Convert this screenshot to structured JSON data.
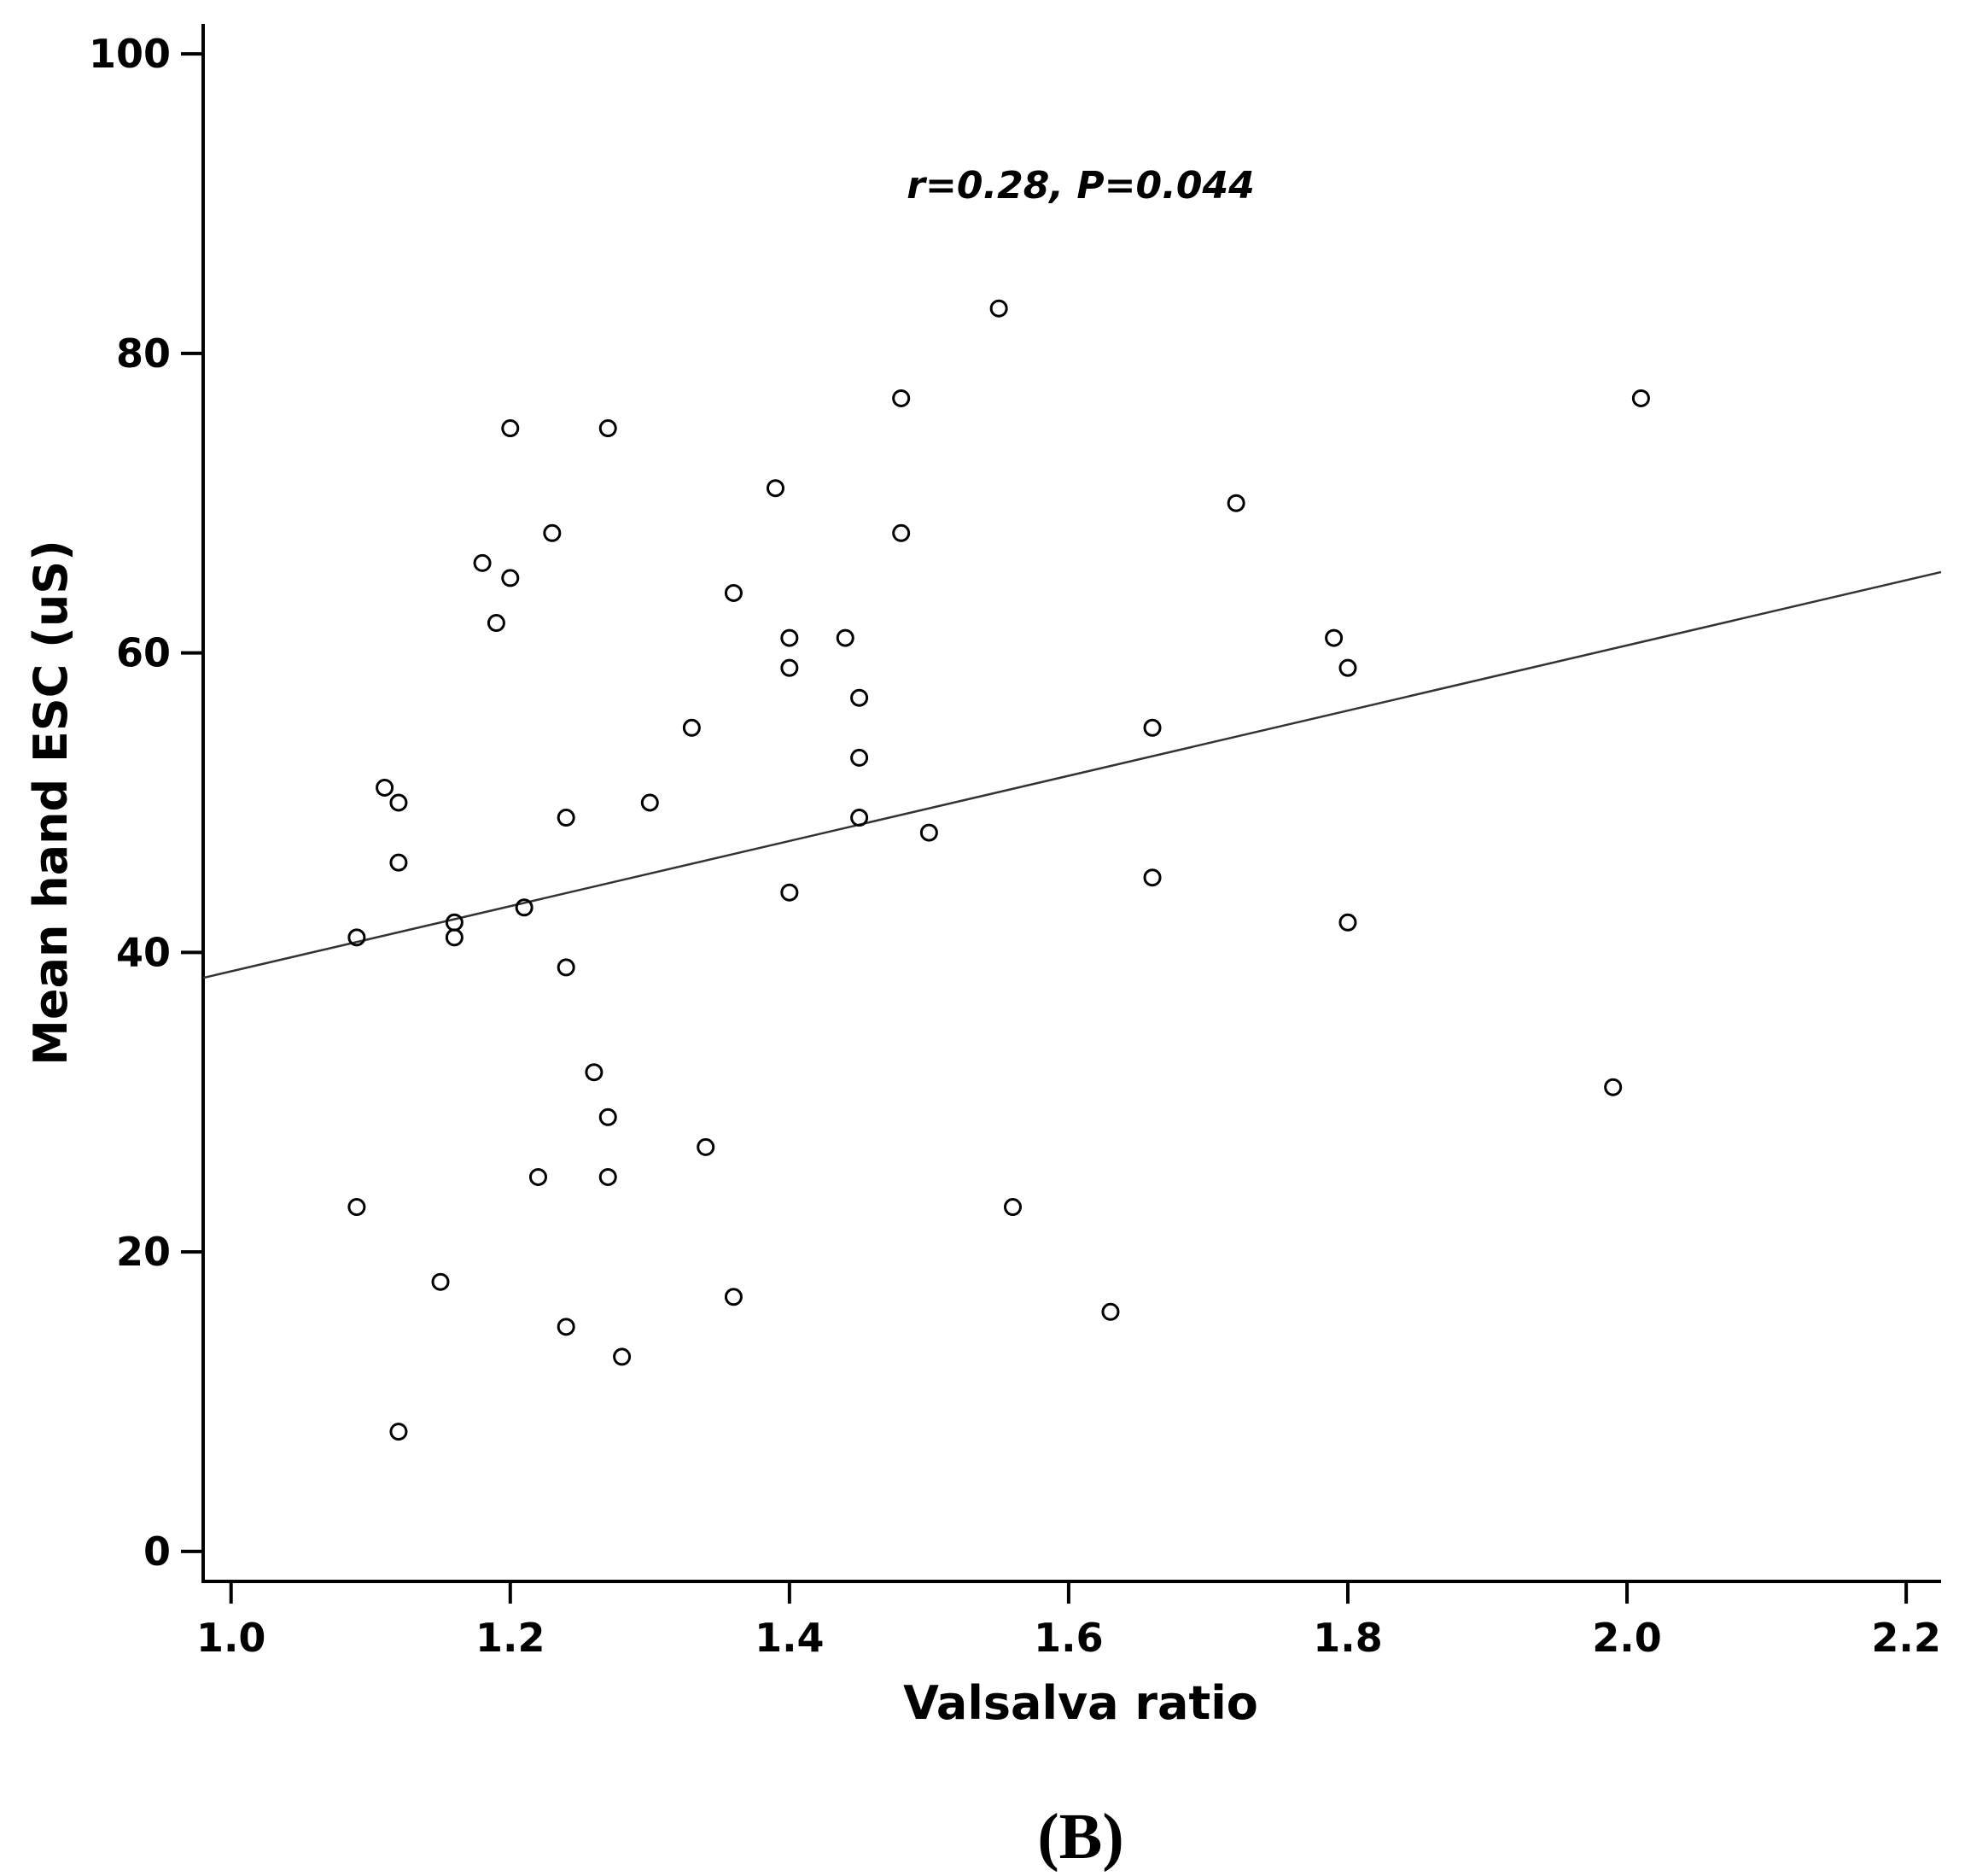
{
  "chart_data": {
    "type": "scatter",
    "xlabel": "Valsalva ratio",
    "ylabel": "Mean hand ESC (uS)",
    "xlim": [
      0.98,
      2.225
    ],
    "ylim": [
      -2,
      102
    ],
    "x_ticks": [
      1.0,
      1.2,
      1.4,
      1.6,
      1.8,
      2.0,
      2.2
    ],
    "x_tick_labels": [
      "1.0",
      "1.2",
      "1.4",
      "1.6",
      "1.8",
      "2.0",
      "2.2"
    ],
    "y_ticks": [
      0,
      20,
      40,
      60,
      80,
      100
    ],
    "y_tick_labels": [
      "0",
      "20",
      "40",
      "60",
      "80",
      "100"
    ],
    "annotation": "r=0.28, P=0.044",
    "panel_label": "(B)",
    "grid": false,
    "marker": "open-circle",
    "fit_line": {
      "x": [
        0.98,
        2.225
      ],
      "y": [
        38.3,
        65.4
      ]
    },
    "points": [
      {
        "x": 1.09,
        "y": 41
      },
      {
        "x": 1.09,
        "y": 23
      },
      {
        "x": 1.11,
        "y": 51
      },
      {
        "x": 1.12,
        "y": 50
      },
      {
        "x": 1.12,
        "y": 46
      },
      {
        "x": 1.12,
        "y": 8
      },
      {
        "x": 1.15,
        "y": 18
      },
      {
        "x": 1.16,
        "y": 42
      },
      {
        "x": 1.16,
        "y": 41
      },
      {
        "x": 1.18,
        "y": 66
      },
      {
        "x": 1.19,
        "y": 62
      },
      {
        "x": 1.2,
        "y": 75
      },
      {
        "x": 1.2,
        "y": 65
      },
      {
        "x": 1.21,
        "y": 43
      },
      {
        "x": 1.22,
        "y": 25
      },
      {
        "x": 1.23,
        "y": 68
      },
      {
        "x": 1.24,
        "y": 49
      },
      {
        "x": 1.24,
        "y": 39
      },
      {
        "x": 1.24,
        "y": 15
      },
      {
        "x": 1.26,
        "y": 32
      },
      {
        "x": 1.27,
        "y": 75
      },
      {
        "x": 1.27,
        "y": 29
      },
      {
        "x": 1.27,
        "y": 25
      },
      {
        "x": 1.28,
        "y": 13
      },
      {
        "x": 1.3,
        "y": 50
      },
      {
        "x": 1.33,
        "y": 55
      },
      {
        "x": 1.34,
        "y": 27
      },
      {
        "x": 1.36,
        "y": 64
      },
      {
        "x": 1.36,
        "y": 17
      },
      {
        "x": 1.39,
        "y": 71
      },
      {
        "x": 1.4,
        "y": 61
      },
      {
        "x": 1.4,
        "y": 59
      },
      {
        "x": 1.4,
        "y": 44
      },
      {
        "x": 1.44,
        "y": 61
      },
      {
        "x": 1.45,
        "y": 57
      },
      {
        "x": 1.45,
        "y": 53
      },
      {
        "x": 1.45,
        "y": 49
      },
      {
        "x": 1.48,
        "y": 77
      },
      {
        "x": 1.48,
        "y": 68
      },
      {
        "x": 1.5,
        "y": 48
      },
      {
        "x": 1.55,
        "y": 83
      },
      {
        "x": 1.56,
        "y": 23
      },
      {
        "x": 1.63,
        "y": 16
      },
      {
        "x": 1.66,
        "y": 55
      },
      {
        "x": 1.66,
        "y": 45
      },
      {
        "x": 1.72,
        "y": 70
      },
      {
        "x": 1.79,
        "y": 61
      },
      {
        "x": 1.8,
        "y": 59
      },
      {
        "x": 1.8,
        "y": 42
      },
      {
        "x": 1.99,
        "y": 31
      },
      {
        "x": 2.01,
        "y": 77
      }
    ]
  }
}
